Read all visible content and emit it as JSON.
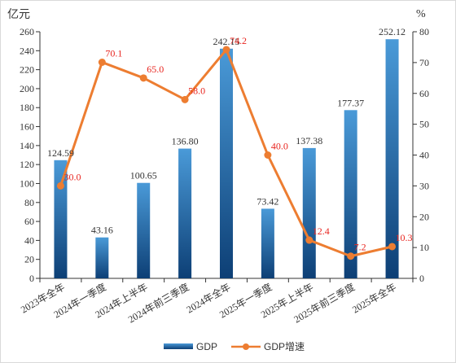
{
  "chart_data": {
    "type": "bar",
    "categories": [
      "2023年全年",
      "2024年一季度",
      "2024年上半年",
      "2024年前三季度",
      "2024年全年",
      "2025年一季度",
      "2025年上半年",
      "2025年前三季度",
      "2025年全年"
    ],
    "series": [
      {
        "name": "GDP",
        "type": "bar",
        "axis": "left",
        "values": [
          124.59,
          43.16,
          100.65,
          136.8,
          242.15,
          73.42,
          137.38,
          177.37,
          252.12
        ],
        "labels": [
          "124.59",
          "43.16",
          "100.65",
          "136.80",
          "242.15",
          "73.42",
          "137.38",
          "177.37",
          "252.12"
        ],
        "color": "#2e7bbf"
      },
      {
        "name": "GDP增速",
        "type": "line",
        "axis": "right",
        "values": [
          30.0,
          70.1,
          65.0,
          58.0,
          74.2,
          40.0,
          12.4,
          7.2,
          10.3
        ],
        "labels": [
          "30.0",
          "70.1",
          "65.0",
          "58.0",
          "74.2",
          "40.0",
          "12.4",
          "7.2",
          "10.3"
        ],
        "color": "#ed7d31"
      }
    ],
    "y_left": {
      "unit": "亿元",
      "min": 0,
      "max": 260,
      "step": 20
    },
    "y_right": {
      "unit": "%",
      "min": 0,
      "max": 80,
      "step": 10
    },
    "grid": false,
    "legend_position": "bottom-center",
    "line_label_color": "#e8251f"
  }
}
